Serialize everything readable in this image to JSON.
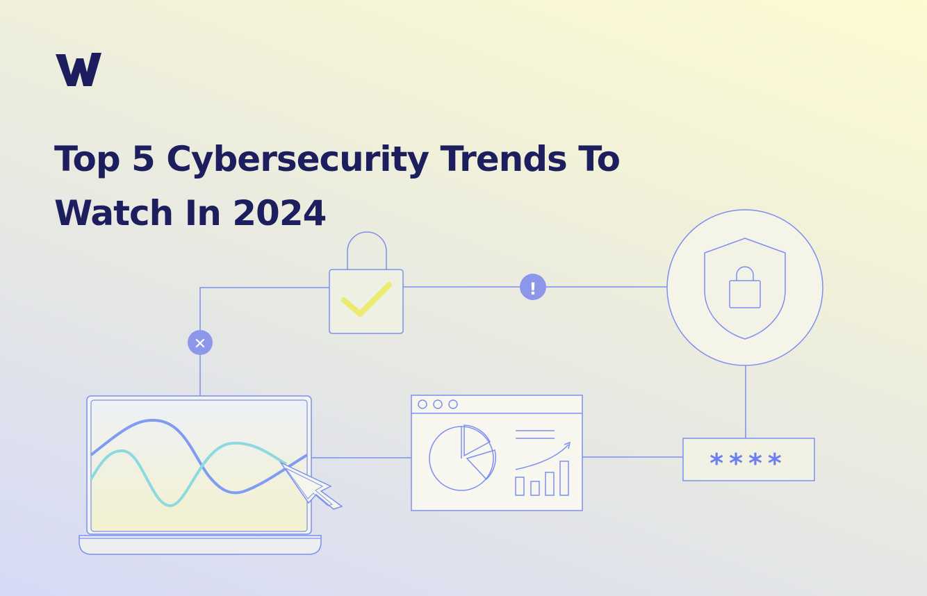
{
  "brand": {
    "logo": "w-logo-icon"
  },
  "headline": {
    "line1": "Top 5 Cybersecurity Trends To",
    "line2": "Watch In 2024"
  },
  "password_field": {
    "mask": "****"
  },
  "badges": {
    "alert": "!",
    "error": "✕"
  },
  "colors": {
    "navy": "#1d1e5e",
    "line_blue": "#7b8ff0",
    "badge_purple": "#8c97ea",
    "check_yellow": "#ecea6f",
    "wave_blue": "#7f9cf2",
    "wave_teal": "#8ed8e0"
  }
}
